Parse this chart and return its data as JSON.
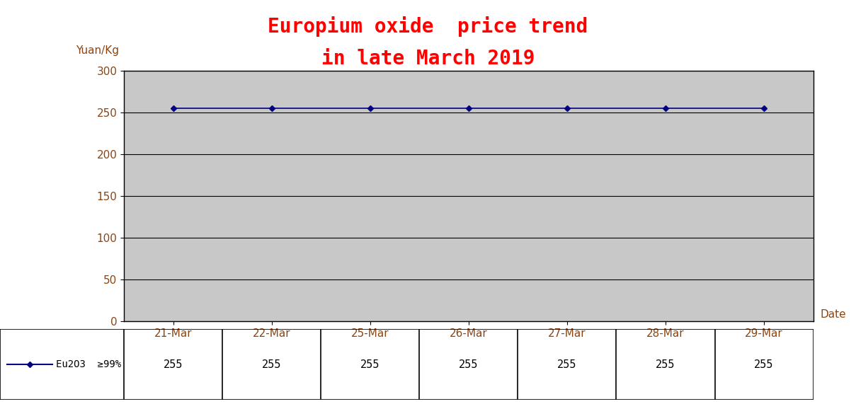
{
  "title_line1": "Europium oxide  price trend",
  "title_line2": "in late March 2019",
  "title_color": "red",
  "title_fontsize": 20,
  "ylabel": "Yuan/Kg",
  "xlabel": "Date",
  "dates": [
    "21-Mar",
    "22-Mar",
    "25-Mar",
    "26-Mar",
    "27-Mar",
    "28-Mar",
    "29-Mar"
  ],
  "series": [
    {
      "label": "Eu2O3  ≥99%",
      "values": [
        255,
        255,
        255,
        255,
        255,
        255,
        255
      ],
      "color": "#000080",
      "marker": "D",
      "markersize": 4
    }
  ],
  "ylim": [
    0,
    300
  ],
  "yticks": [
    0,
    50,
    100,
    150,
    200,
    250,
    300
  ],
  "background_color": "#c8c8c8",
  "fig_background": "white",
  "grid_color": "black",
  "grid_linewidth": 0.8,
  "table_row_label": "Eu2O3  ≥99%",
  "table_values": [
    "255",
    "255",
    "255",
    "255",
    "255",
    "255",
    "255"
  ],
  "tick_label_color": "#8B4513",
  "ylabel_color": "#000080",
  "xlabel_color": "#8B4513"
}
